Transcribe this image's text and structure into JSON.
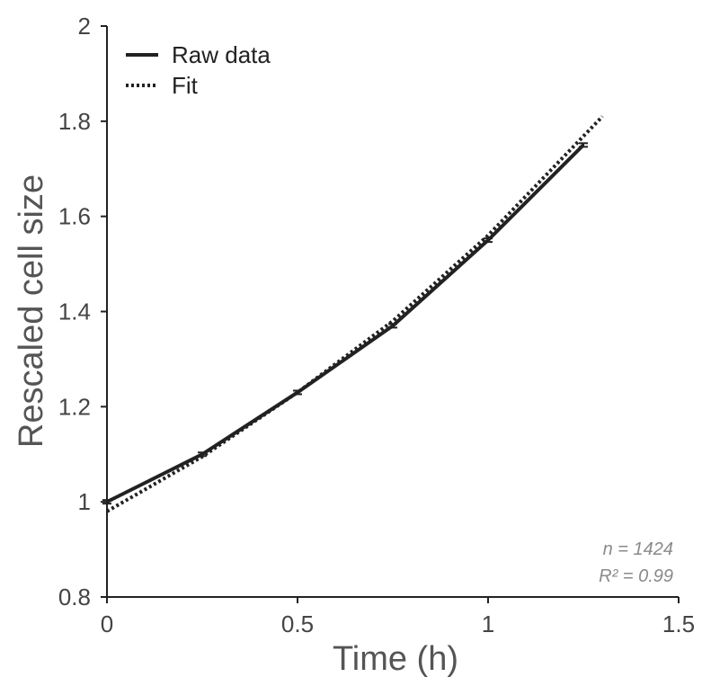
{
  "chart_data": {
    "type": "line",
    "xlabel": "Time (h)",
    "ylabel": "Rescaled cell size",
    "xlim": [
      0,
      1.5
    ],
    "ylim": [
      0.8,
      2
    ],
    "xticks": [
      0,
      0.5,
      1,
      1.5
    ],
    "xtick_labels": [
      "0",
      "0.5",
      "1",
      "1.5"
    ],
    "yticks": [
      0.8,
      1,
      1.2,
      1.4,
      1.6,
      1.8,
      2
    ],
    "ytick_labels": [
      "0.8",
      "1",
      "1.2",
      "1.4",
      "1.6",
      "1.8",
      "2"
    ],
    "legend_position": "top-left",
    "grid": false,
    "series": [
      {
        "name": "Raw data",
        "style": "solid",
        "color": "#222222",
        "x": [
          0,
          0.25,
          0.5,
          0.75,
          1,
          1.25
        ],
        "y": [
          1.0,
          1.1,
          1.23,
          1.37,
          1.55,
          1.75
        ],
        "error_bars": true
      },
      {
        "name": "Fit",
        "style": "dotted",
        "color": "#222222",
        "x": [
          0,
          0.25,
          0.5,
          0.75,
          1,
          1.3
        ],
        "y": [
          0.98,
          1.095,
          1.23,
          1.38,
          1.56,
          1.81
        ]
      }
    ],
    "annotations": {
      "n_text": "n = 1424",
      "r2_text": "R² = 0.99"
    }
  }
}
